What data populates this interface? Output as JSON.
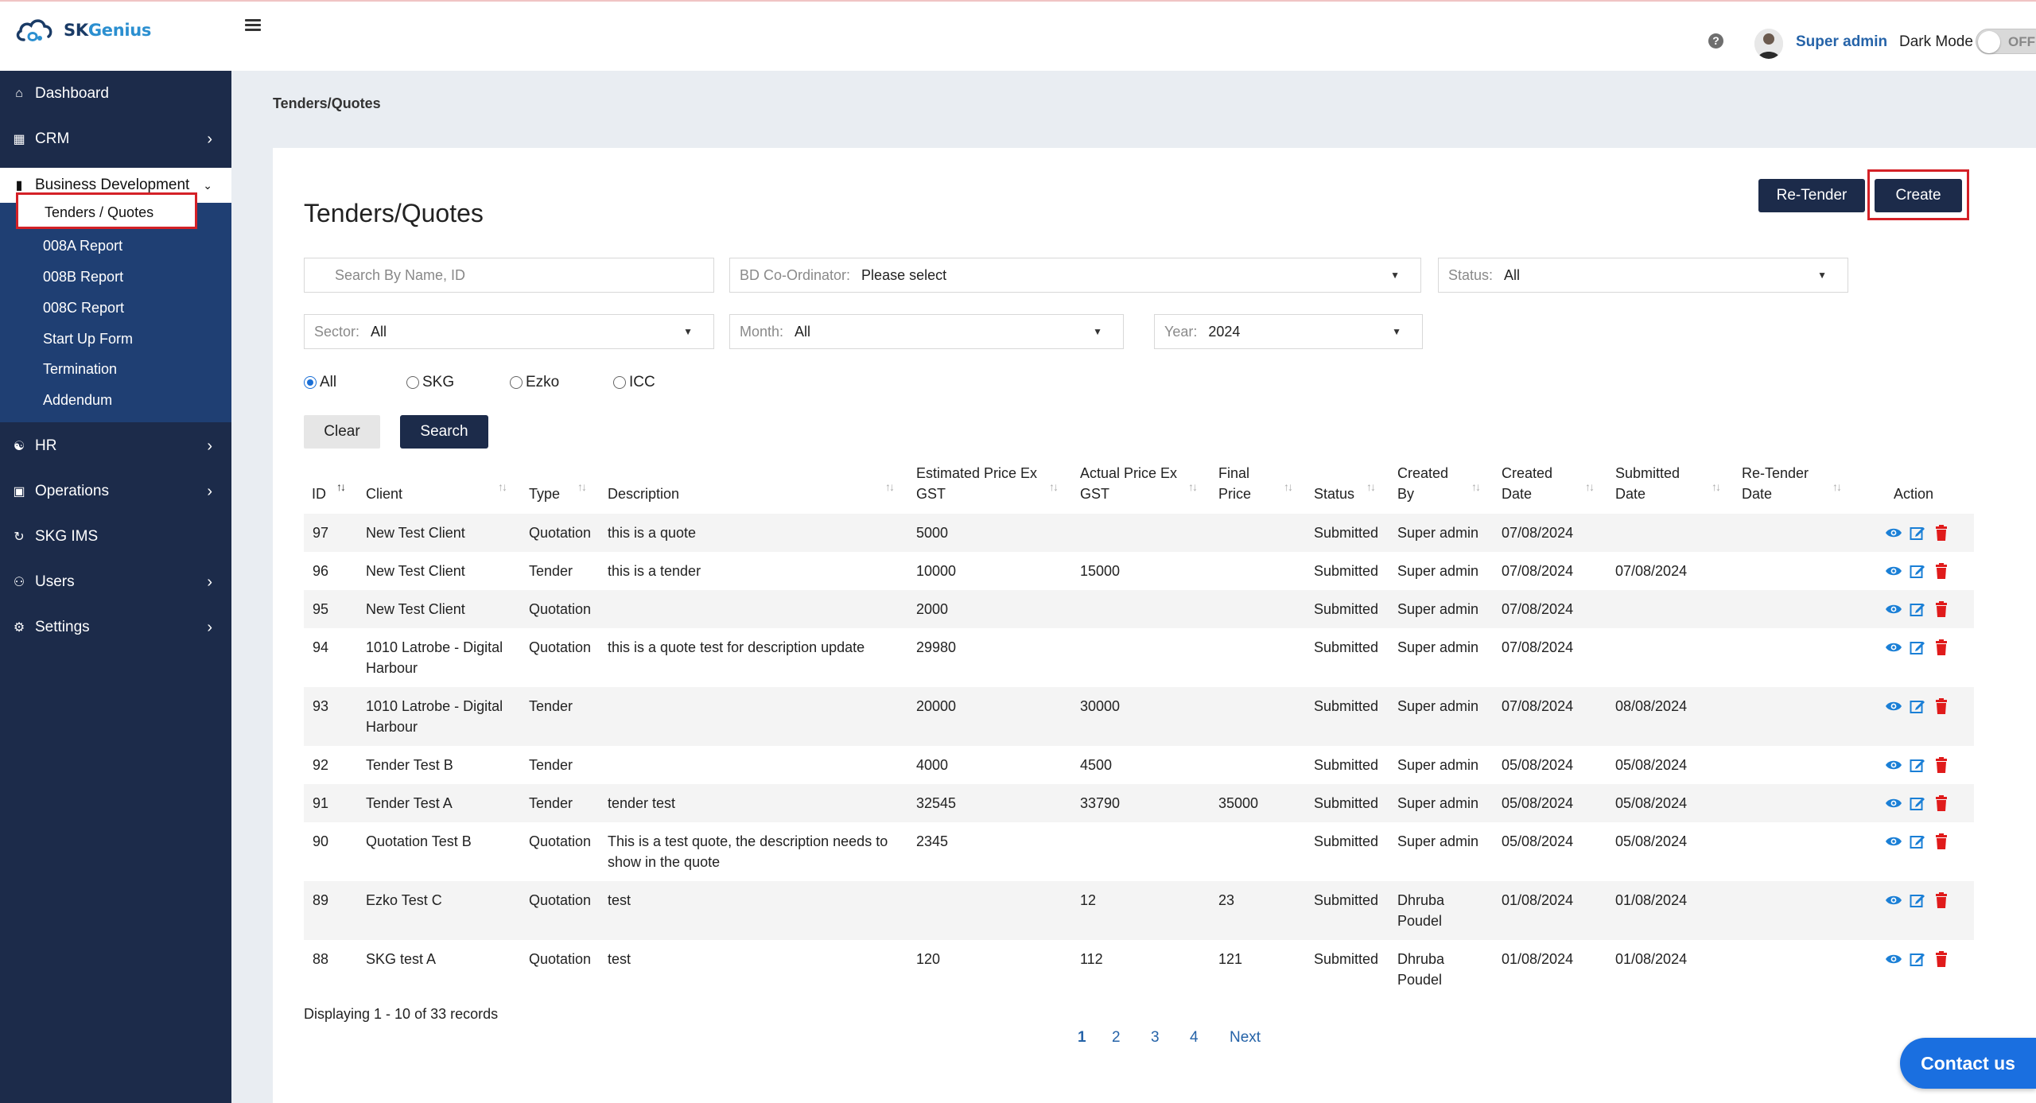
{
  "app": {
    "brand_prefix": "SK",
    "brand_suffix": "Genius"
  },
  "header": {
    "username": "Super admin",
    "dark_mode_label": "Dark Mode",
    "dark_mode_state": "OFF"
  },
  "sidebar": {
    "items": [
      {
        "label": "Dashboard",
        "icon": "home-icon"
      },
      {
        "label": "CRM",
        "icon": "building-icon"
      },
      {
        "label": "Business Development",
        "icon": "folder-icon"
      },
      {
        "label": "HR",
        "icon": "handshake-icon"
      },
      {
        "label": "Operations",
        "icon": "briefcase-icon"
      },
      {
        "label": "SKG IMS",
        "icon": "sync-icon"
      },
      {
        "label": "Users",
        "icon": "users-icon"
      },
      {
        "label": "Settings",
        "icon": "gear-icon"
      }
    ],
    "sub_items": [
      "Tenders / Quotes",
      "008A Report",
      "008B Report",
      "008C Report",
      "Start Up Form",
      "Termination",
      "Addendum"
    ]
  },
  "breadcrumb": "Tenders/Quotes",
  "page_title": "Tenders/Quotes",
  "buttons": {
    "retender": "Re-Tender",
    "create": "Create",
    "clear": "Clear",
    "search": "Search"
  },
  "filters": {
    "search_placeholder": "Search By Name, ID",
    "bd_label": "BD Co-Ordinator:",
    "bd_value": "Please select",
    "status_label": "Status:",
    "status_value": "All",
    "sector_label": "Sector:",
    "sector_value": "All",
    "month_label": "Month:",
    "month_value": "All",
    "year_label": "Year:",
    "year_value": "2024"
  },
  "radios": [
    {
      "label": "All",
      "checked": true
    },
    {
      "label": "SKG",
      "checked": false
    },
    {
      "label": "Ezko",
      "checked": false
    },
    {
      "label": "ICC",
      "checked": false
    }
  ],
  "table": {
    "headers": {
      "id": "ID",
      "client": "Client",
      "type": "Type",
      "description": "Description",
      "est_1": "Estimated Price Ex",
      "est_2": "GST",
      "act_1": "Actual Price Ex",
      "act_2": "GST",
      "final_1": "Final",
      "final_2": "Price",
      "status": "Status",
      "created_by_1": "Created",
      "created_by_2": "By",
      "created_date_1": "Created",
      "created_date_2": "Date",
      "submitted_1": "Submitted",
      "submitted_2": "Date",
      "retender_1": "Re-Tender",
      "retender_2": "Date",
      "action": "Action"
    },
    "rows": [
      {
        "id": "97",
        "client": "New Test Client",
        "type": "Quotation",
        "description": "this is a quote",
        "est": "5000",
        "actual": "",
        "final": "",
        "status": "Submitted",
        "created_by": "Super admin",
        "created_date": "07/08/2024",
        "submitted_date": "",
        "retender_date": ""
      },
      {
        "id": "96",
        "client": "New Test Client",
        "type": "Tender",
        "description": "this is a tender",
        "est": "10000",
        "actual": "15000",
        "final": "",
        "status": "Submitted",
        "created_by": "Super admin",
        "created_date": "07/08/2024",
        "submitted_date": "07/08/2024",
        "retender_date": ""
      },
      {
        "id": "95",
        "client": "New Test Client",
        "type": "Quotation",
        "description": "",
        "est": "2000",
        "actual": "",
        "final": "",
        "status": "Submitted",
        "created_by": "Super admin",
        "created_date": "07/08/2024",
        "submitted_date": "",
        "retender_date": ""
      },
      {
        "id": "94",
        "client": "1010 Latrobe - Digital",
        "client2": "Harbour",
        "type": "Quotation",
        "description": "this is a quote test for description update",
        "est": "29980",
        "actual": "",
        "final": "",
        "status": "Submitted",
        "created_by": "Super admin",
        "created_date": "07/08/2024",
        "submitted_date": "",
        "retender_date": ""
      },
      {
        "id": "93",
        "client": "1010 Latrobe - Digital",
        "client2": "Harbour",
        "type": "Tender",
        "description": "",
        "est": "20000",
        "actual": "30000",
        "final": "",
        "status": "Submitted",
        "created_by": "Super admin",
        "created_date": "07/08/2024",
        "submitted_date": "08/08/2024",
        "retender_date": ""
      },
      {
        "id": "92",
        "client": "Tender Test B",
        "type": "Tender",
        "description": "",
        "est": "4000",
        "actual": "4500",
        "final": "",
        "status": "Submitted",
        "created_by": "Super admin",
        "created_date": "05/08/2024",
        "submitted_date": "05/08/2024",
        "retender_date": ""
      },
      {
        "id": "91",
        "client": "Tender Test A",
        "type": "Tender",
        "description": "tender test",
        "est": "32545",
        "actual": "33790",
        "final": "35000",
        "status": "Submitted",
        "created_by": "Super admin",
        "created_date": "05/08/2024",
        "submitted_date": "05/08/2024",
        "retender_date": ""
      },
      {
        "id": "90",
        "client": "Quotation Test B",
        "type": "Quotation",
        "description": "This is a test quote, the description needs to",
        "description2": "show in the quote",
        "est": "2345",
        "actual": "",
        "final": "",
        "status": "Submitted",
        "created_by": "Super admin",
        "created_date": "05/08/2024",
        "submitted_date": "05/08/2024",
        "retender_date": ""
      },
      {
        "id": "89",
        "client": "Ezko Test C",
        "type": "Quotation",
        "description": "test",
        "est": "",
        "actual": "12",
        "final": "23",
        "status": "Submitted",
        "created_by": "Dhruba",
        "created_by2": "Poudel",
        "created_date": "01/08/2024",
        "submitted_date": "01/08/2024",
        "retender_date": ""
      },
      {
        "id": "88",
        "client": "SKG test A",
        "type": "Quotation",
        "description": "test",
        "est": "120",
        "actual": "112",
        "final": "121",
        "status": "Submitted",
        "created_by": "Dhruba",
        "created_by2": "Poudel",
        "created_date": "01/08/2024",
        "submitted_date": "01/08/2024",
        "retender_date": ""
      }
    ]
  },
  "records_text": "Displaying 1 - 10 of 33 records",
  "pagination": [
    "1",
    "2",
    "3",
    "4",
    "Next"
  ],
  "contact_label": "Contact us",
  "colors": {
    "sidebar": "#1c2b4a",
    "sub_nav": "#1f3f73",
    "accent_blue": "#2563a8",
    "highlight_red": "#d42127"
  }
}
